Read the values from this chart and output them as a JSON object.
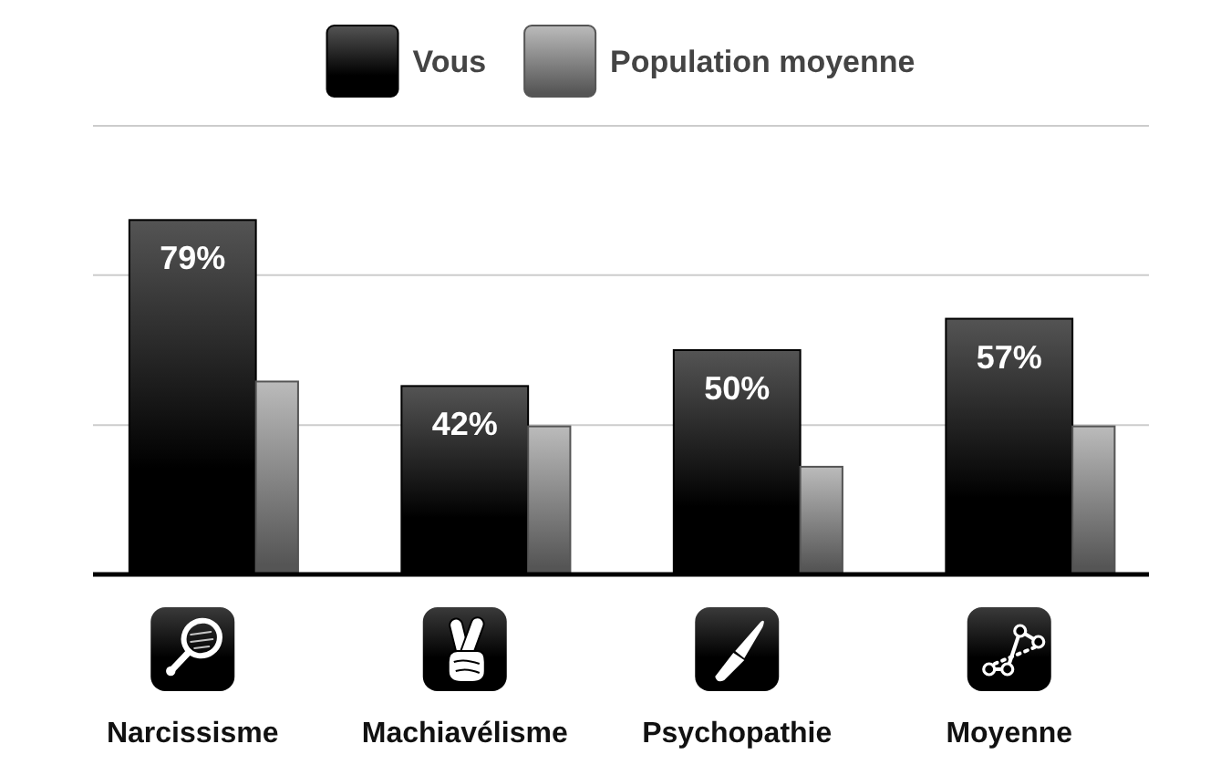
{
  "chart_data": {
    "type": "bar",
    "categories": [
      "Narcissisme",
      "Machiavélisme",
      "Psychopathie",
      "Moyenne"
    ],
    "series": [
      {
        "name": "Vous",
        "color": "#000000",
        "values": [
          79,
          42,
          50,
          57
        ],
        "value_labels": [
          "79%",
          "42%",
          "50%",
          "57%"
        ]
      },
      {
        "name": "Population moyenne",
        "color": "#555555",
        "values": [
          43,
          33,
          24,
          33
        ]
      }
    ],
    "ylim": [
      0,
      100
    ],
    "yticks": [
      {
        "value": 33.3,
        "label": null
      },
      {
        "value": 66.7,
        "label": null
      },
      {
        "value": 100,
        "label": null
      }
    ],
    "grid": "y",
    "legend": "top",
    "tick_labels": "x"
  }
}
